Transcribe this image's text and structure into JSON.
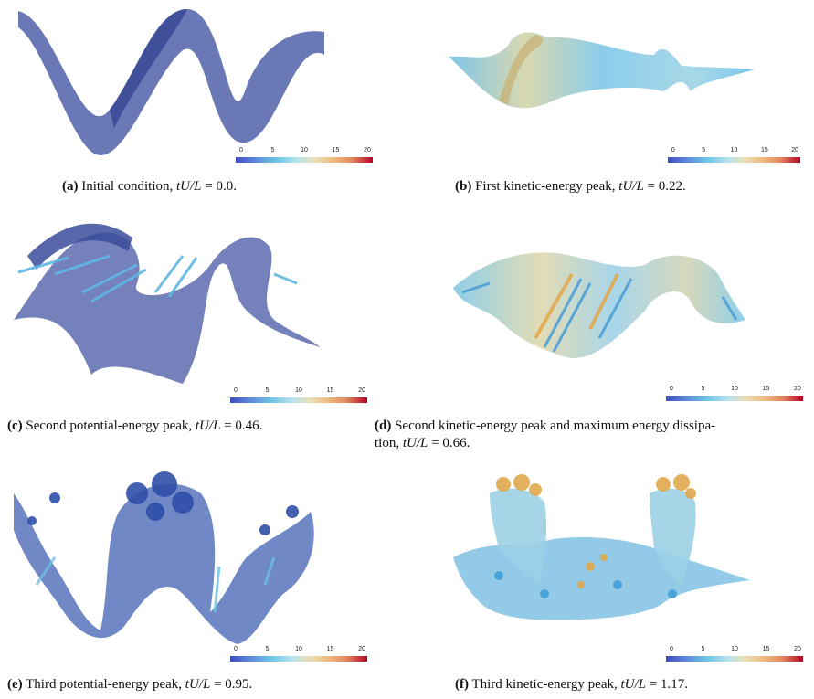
{
  "panels": [
    {
      "label": "(a)",
      "text": " Initial condition, ",
      "eq": "tU/L",
      "val": " = 0.0."
    },
    {
      "label": "(b)",
      "text": " First kinetic-energy peak, ",
      "eq": "tU/L",
      "val": " = 0.22."
    },
    {
      "label": "(c)",
      "text": " Second potential-energy peak, ",
      "eq": "tU/L",
      "val": " = 0.46."
    },
    {
      "label": "(d)",
      "text": " Second kinetic-energy peak and maximum energy dissipa-",
      "line2": "tion, ",
      "eq": "tU/L",
      "val": " = 0.66."
    },
    {
      "label": "(e)",
      "text": " Third potential-energy peak, ",
      "eq": "tU/L",
      "val": " = 0.95."
    },
    {
      "label": "(f)",
      "text": " Third kinetic-energy peak, ",
      "eq": "tU/L",
      "val": " = 1.17."
    }
  ],
  "colorbar_ticks": [
    "0",
    "5",
    "10",
    "15",
    "20"
  ],
  "colors": {
    "deep_blue": "#4a5aa8",
    "light_blue": "#6ab8e0",
    "cream": "#e6dcb0",
    "orange": "#e8a860"
  }
}
